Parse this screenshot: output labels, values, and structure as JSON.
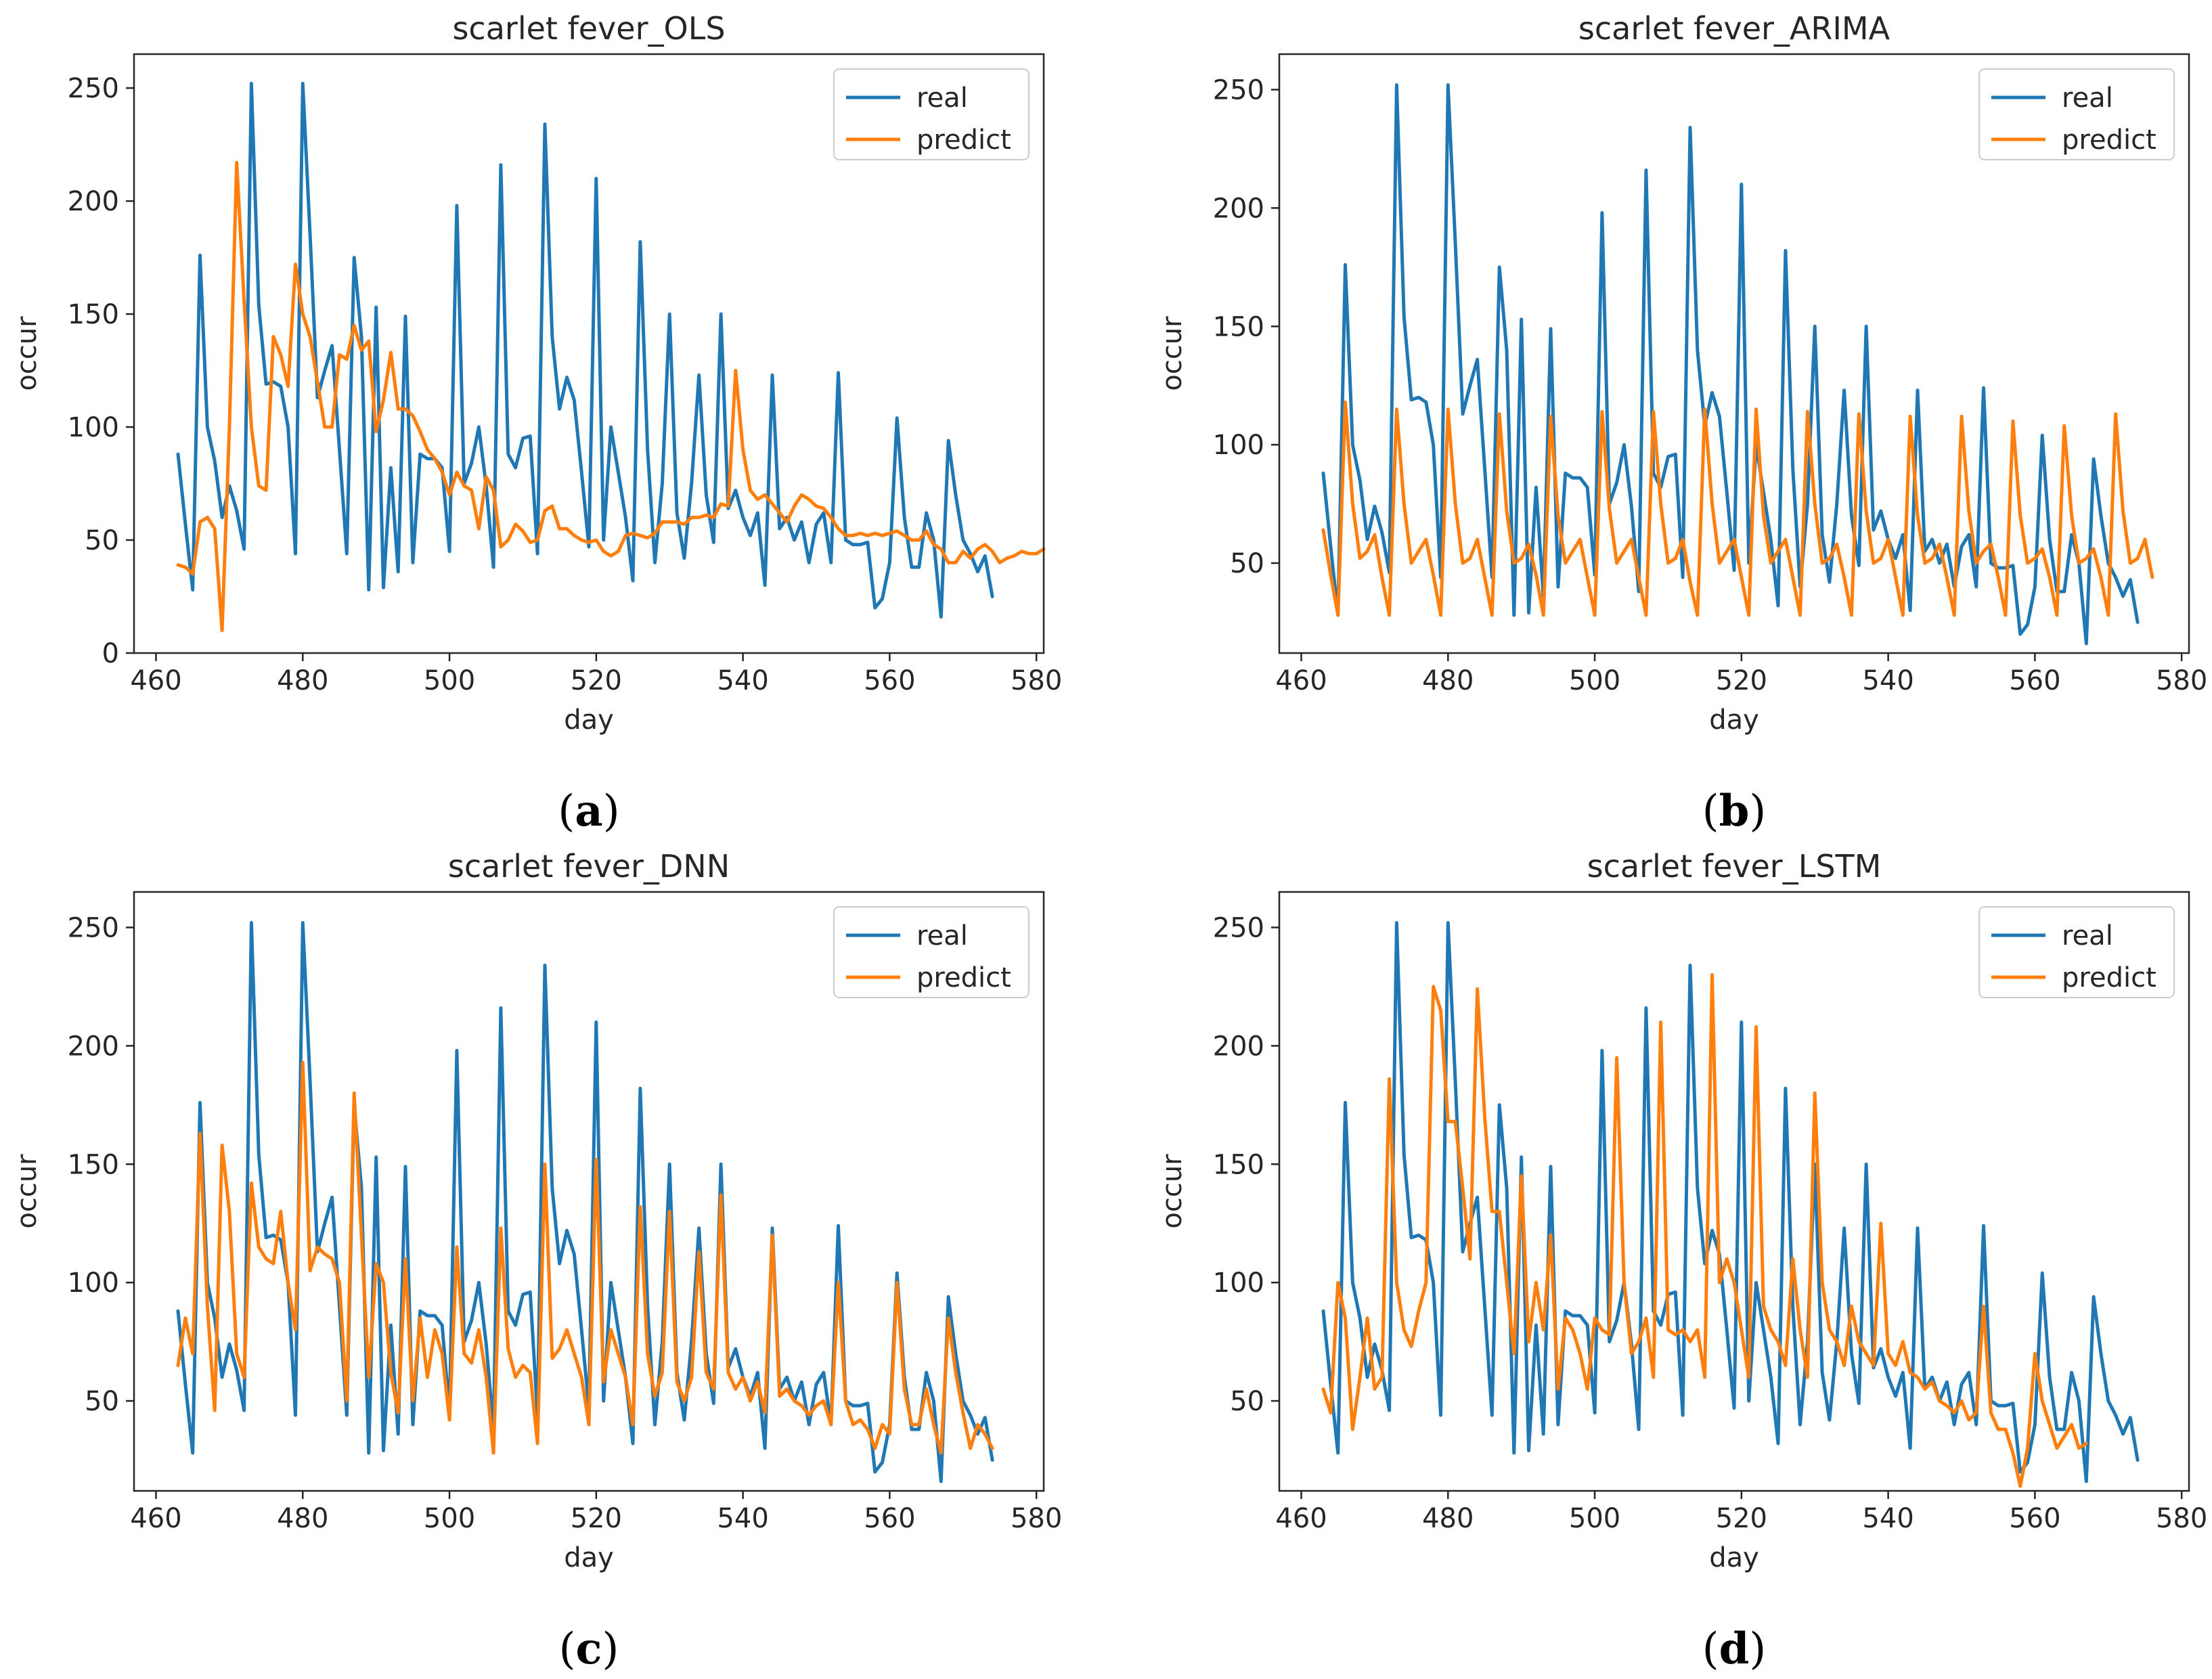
{
  "colors": {
    "real": "#1f77b4",
    "predict": "#ff7f0e",
    "axis": "#262626"
  },
  "chart_data": [
    {
      "type": "line",
      "title": "scarlet fever_OLS",
      "caption": "a",
      "xlabel": "day",
      "ylabel": "occur",
      "xlim": [
        457,
        581
      ],
      "ylim": [
        0,
        265
      ],
      "xticks": [
        460,
        480,
        500,
        520,
        540,
        560,
        580
      ],
      "yticks": [
        0,
        50,
        100,
        150,
        200,
        250
      ],
      "legend_position": "top-right",
      "x_start": 463,
      "series": [
        {
          "name": "real",
          "color": "#1f77b4",
          "values": [
            88,
            57,
            28,
            176,
            100,
            85,
            60,
            74,
            63,
            46,
            252,
            154,
            119,
            120,
            118,
            100,
            44,
            252,
            185,
            113,
            125,
            136,
            90,
            44,
            175,
            140,
            28,
            153,
            29,
            82,
            36,
            149,
            40,
            88,
            86,
            86,
            82,
            45,
            198,
            75,
            84,
            100,
            74,
            38,
            216,
            88,
            82,
            95,
            96,
            44,
            234,
            140,
            108,
            122,
            112,
            80,
            47,
            210,
            50,
            100,
            80,
            60,
            32,
            182,
            90,
            40,
            75,
            150,
            62,
            42,
            75,
            123,
            70,
            49,
            150,
            64,
            72,
            60,
            52,
            62,
            30,
            123,
            55,
            60,
            50,
            58,
            40,
            57,
            62,
            40,
            124,
            50,
            48,
            48,
            49,
            20,
            24,
            40,
            104,
            60,
            38,
            38,
            62,
            50,
            16,
            94,
            70,
            50,
            44,
            36,
            43,
            25
          ]
        },
        {
          "name": "predict",
          "color": "#ff7f0e",
          "values": [
            39,
            38,
            35,
            58,
            60,
            55,
            10,
            100,
            217,
            156,
            100,
            74,
            72,
            140,
            132,
            118,
            172,
            150,
            140,
            120,
            100,
            100,
            132,
            130,
            145,
            134,
            138,
            98,
            112,
            133,
            108,
            108,
            105,
            98,
            90,
            86,
            80,
            70,
            80,
            74,
            72,
            55,
            78,
            72,
            47,
            50,
            57,
            54,
            49,
            50,
            63,
            65,
            55,
            55,
            52,
            50,
            49,
            50,
            45,
            43,
            45,
            52,
            53,
            52,
            51,
            53,
            58,
            58,
            58,
            57,
            60,
            60,
            61,
            60,
            66,
            65,
            125,
            90,
            72,
            68,
            70,
            66,
            62,
            58,
            65,
            70,
            68,
            65,
            64,
            60,
            55,
            52,
            52,
            53,
            52,
            53,
            52,
            53,
            54,
            52,
            50,
            50,
            54,
            48,
            46,
            40,
            40,
            45,
            42,
            46,
            48,
            45,
            40,
            42,
            43,
            45,
            44,
            44,
            46
          ]
        }
      ]
    },
    {
      "type": "line",
      "title": "scarlet fever_ARIMA",
      "caption": "b",
      "xlabel": "day",
      "ylabel": "occur",
      "xlim": [
        457,
        581
      ],
      "ylim": [
        12,
        265
      ],
      "xticks": [
        460,
        480,
        500,
        520,
        540,
        560,
        580
      ],
      "yticks": [
        50,
        100,
        150,
        200,
        250
      ],
      "legend_position": "top-right",
      "x_start": 463,
      "series": [
        {
          "name": "real",
          "color": "#1f77b4",
          "values": [
            88,
            57,
            28,
            176,
            100,
            85,
            60,
            74,
            63,
            46,
            252,
            154,
            119,
            120,
            118,
            100,
            44,
            252,
            185,
            113,
            125,
            136,
            90,
            44,
            175,
            140,
            28,
            153,
            29,
            82,
            36,
            149,
            40,
            88,
            86,
            86,
            82,
            45,
            198,
            75,
            84,
            100,
            74,
            38,
            216,
            88,
            82,
            95,
            96,
            44,
            234,
            140,
            108,
            122,
            112,
            80,
            47,
            210,
            50,
            100,
            80,
            60,
            32,
            182,
            90,
            40,
            75,
            150,
            62,
            42,
            75,
            123,
            70,
            49,
            150,
            64,
            72,
            60,
            52,
            62,
            30,
            123,
            55,
            60,
            50,
            58,
            40,
            57,
            62,
            40,
            124,
            50,
            48,
            48,
            49,
            20,
            24,
            40,
            104,
            60,
            38,
            38,
            62,
            50,
            16,
            94,
            70,
            50,
            44,
            36,
            43,
            25
          ]
        },
        {
          "name": "predict",
          "color": "#ff7f0e",
          "values": [
            64,
            45,
            28,
            118,
            75,
            52,
            55,
            62,
            44,
            28,
            115,
            75,
            50,
            55,
            60,
            45,
            28,
            115,
            75,
            50,
            52,
            60,
            44,
            28,
            113,
            72,
            50,
            52,
            58,
            45,
            28,
            112,
            70,
            50,
            55,
            60,
            44,
            28,
            114,
            73,
            50,
            55,
            60,
            44,
            28,
            114,
            75,
            50,
            52,
            60,
            42,
            28,
            115,
            75,
            50,
            55,
            60,
            44,
            28,
            115,
            70,
            50,
            55,
            60,
            44,
            28,
            114,
            75,
            50,
            52,
            58,
            44,
            28,
            113,
            72,
            50,
            52,
            60,
            44,
            28,
            112,
            70,
            50,
            52,
            58,
            44,
            28,
            112,
            72,
            50,
            55,
            58,
            44,
            28,
            110,
            70,
            50,
            52,
            56,
            44,
            28,
            108,
            70,
            50,
            52,
            56,
            44,
            28,
            113,
            72,
            50,
            52,
            60,
            44
          ]
        }
      ]
    },
    {
      "type": "line",
      "title": "scarlet fever_DNN",
      "caption": "c",
      "xlabel": "day",
      "ylabel": "occur",
      "xlim": [
        457,
        581
      ],
      "ylim": [
        12,
        265
      ],
      "xticks": [
        460,
        480,
        500,
        520,
        540,
        560,
        580
      ],
      "yticks": [
        50,
        100,
        150,
        200,
        250
      ],
      "legend_position": "top-right",
      "x_start": 463,
      "series": [
        {
          "name": "real",
          "color": "#1f77b4",
          "values": [
            88,
            57,
            28,
            176,
            100,
            85,
            60,
            74,
            63,
            46,
            252,
            154,
            119,
            120,
            118,
            100,
            44,
            252,
            185,
            113,
            125,
            136,
            90,
            44,
            175,
            140,
            28,
            153,
            29,
            82,
            36,
            149,
            40,
            88,
            86,
            86,
            82,
            45,
            198,
            75,
            84,
            100,
            74,
            38,
            216,
            88,
            82,
            95,
            96,
            44,
            234,
            140,
            108,
            122,
            112,
            80,
            47,
            210,
            50,
            100,
            80,
            60,
            32,
            182,
            90,
            40,
            75,
            150,
            62,
            42,
            75,
            123,
            70,
            49,
            150,
            64,
            72,
            60,
            52,
            62,
            30,
            123,
            55,
            60,
            50,
            58,
            40,
            57,
            62,
            40,
            124,
            50,
            48,
            48,
            49,
            20,
            24,
            40,
            104,
            60,
            38,
            38,
            62,
            50,
            16,
            94,
            70,
            50,
            44,
            36,
            43,
            25
          ]
        },
        {
          "name": "predict",
          "color": "#ff7f0e",
          "values": [
            65,
            85,
            70,
            163,
            90,
            46,
            158,
            130,
            70,
            60,
            142,
            115,
            110,
            108,
            130,
            100,
            80,
            193,
            105,
            115,
            112,
            110,
            100,
            50,
            180,
            120,
            60,
            108,
            100,
            62,
            45,
            110,
            50,
            85,
            60,
            80,
            70,
            42,
            115,
            70,
            66,
            80,
            60,
            28,
            123,
            72,
            60,
            65,
            62,
            32,
            150,
            68,
            72,
            80,
            70,
            60,
            40,
            152,
            58,
            80,
            70,
            60,
            40,
            132,
            70,
            52,
            62,
            130,
            58,
            50,
            60,
            113,
            62,
            55,
            137,
            62,
            55,
            60,
            50,
            58,
            45,
            120,
            52,
            55,
            50,
            48,
            44,
            48,
            50,
            40,
            100,
            50,
            40,
            42,
            38,
            30,
            40,
            36,
            100,
            55,
            40,
            40,
            55,
            40,
            28,
            85,
            62,
            45,
            30,
            40,
            36,
            30
          ]
        }
      ]
    },
    {
      "type": "line",
      "title": "scarlet fever_LSTM",
      "caption": "d",
      "xlabel": "day",
      "ylabel": "occur",
      "xlim": [
        457,
        581
      ],
      "ylim": [
        12,
        265
      ],
      "xticks": [
        460,
        480,
        500,
        520,
        540,
        560,
        580
      ],
      "yticks": [
        50,
        100,
        150,
        200,
        250
      ],
      "legend_position": "top-right",
      "x_start": 463,
      "series": [
        {
          "name": "real",
          "color": "#1f77b4",
          "values": [
            88,
            57,
            28,
            176,
            100,
            85,
            60,
            74,
            63,
            46,
            252,
            154,
            119,
            120,
            118,
            100,
            44,
            252,
            185,
            113,
            125,
            136,
            90,
            44,
            175,
            140,
            28,
            153,
            29,
            82,
            36,
            149,
            40,
            88,
            86,
            86,
            82,
            45,
            198,
            75,
            84,
            100,
            74,
            38,
            216,
            88,
            82,
            95,
            96,
            44,
            234,
            140,
            108,
            122,
            112,
            80,
            47,
            210,
            50,
            100,
            80,
            60,
            32,
            182,
            90,
            40,
            75,
            150,
            62,
            42,
            75,
            123,
            70,
            49,
            150,
            64,
            72,
            60,
            52,
            62,
            30,
            123,
            55,
            60,
            50,
            58,
            40,
            57,
            62,
            40,
            124,
            50,
            48,
            48,
            49,
            20,
            24,
            40,
            104,
            60,
            38,
            38,
            62,
            50,
            16,
            94,
            70,
            50,
            44,
            36,
            43,
            25
          ]
        },
        {
          "name": "predict",
          "color": "#ff7f0e",
          "values": [
            55,
            45,
            100,
            85,
            38,
            60,
            85,
            55,
            60,
            186,
            100,
            80,
            73,
            88,
            100,
            225,
            215,
            168,
            168,
            140,
            110,
            224,
            170,
            130,
            130,
            100,
            70,
            145,
            75,
            100,
            80,
            120,
            55,
            85,
            80,
            70,
            55,
            85,
            80,
            78,
            195,
            100,
            70,
            75,
            85,
            60,
            210,
            80,
            78,
            80,
            75,
            80,
            60,
            230,
            100,
            110,
            100,
            80,
            60,
            208,
            90,
            80,
            75,
            65,
            110,
            80,
            60,
            180,
            100,
            80,
            75,
            65,
            90,
            75,
            70,
            65,
            125,
            70,
            65,
            75,
            62,
            60,
            55,
            58,
            50,
            48,
            45,
            50,
            42,
            45,
            90,
            45,
            38,
            38,
            28,
            14,
            30,
            70,
            50,
            40,
            30,
            35,
            40,
            30,
            32
          ]
        }
      ]
    }
  ]
}
